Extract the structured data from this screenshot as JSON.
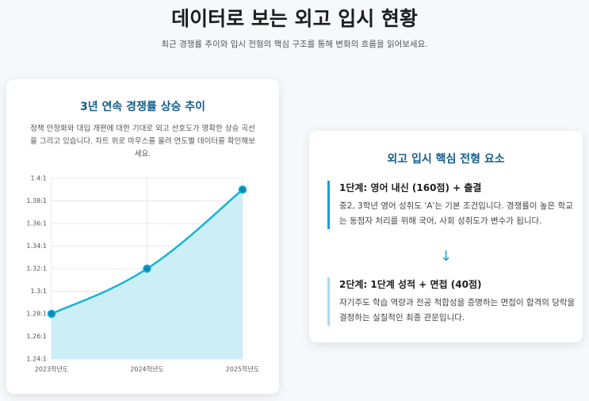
{
  "header": {
    "title": "데이터로 보는 외고 입시 현황",
    "subtitle": "최근 경쟁률 추이와 입시 전형의 핵심 구조를 통해 변화의 흐름을 읽어보세요."
  },
  "chart_card": {
    "title": "3년 연속 경쟁률 상승 추이",
    "description": "정책 안정화와 대입 개편에 대한 기대로 외고 선호도가 명확한 상승 곡선을 그리고 있습니다. 차트 위로 마우스를 올려 연도별 데이터를 확인해보세요."
  },
  "chart_data": {
    "type": "line",
    "categories": [
      "2023학년도",
      "2024학년도",
      "2025학년도"
    ],
    "values": [
      1.28,
      1.32,
      1.39
    ],
    "color": "#17b3d6",
    "ylim": [
      1.24,
      1.4
    ],
    "yticks": [
      {
        "value": 1.24,
        "label": "1.24:1"
      },
      {
        "value": 1.26,
        "label": "1.26:1"
      },
      {
        "value": 1.28,
        "label": "1.28:1"
      },
      {
        "value": 1.3,
        "label": "1.3:1"
      },
      {
        "value": 1.32,
        "label": "1.32:1"
      },
      {
        "value": 1.34,
        "label": "1.34:1"
      },
      {
        "value": 1.36,
        "label": "1.36:1"
      },
      {
        "value": 1.38,
        "label": "1.38:1"
      },
      {
        "value": 1.4,
        "label": "1.4:1"
      }
    ],
    "grid": true,
    "fill": true
  },
  "process_card": {
    "title": "외고 입시 핵심 전형 요소",
    "steps": [
      {
        "heading": "1단계: 영어 내신 (160점) + 출결",
        "text": "중2, 3학년 영어 성취도 'A'는 기본 조건입니다. 경쟁률이 높은 학교는 동점자 처리를 위해 국어, 사회 성취도가 변수가 됩니다."
      },
      {
        "heading": "2단계: 1단계 성적 + 면접 (40점)",
        "text": "자기주도 학습 역량과 전공 적합성을 증명하는 면접이 합격의 당락을 결정하는 실질적인 최종 관문입니다."
      }
    ]
  }
}
